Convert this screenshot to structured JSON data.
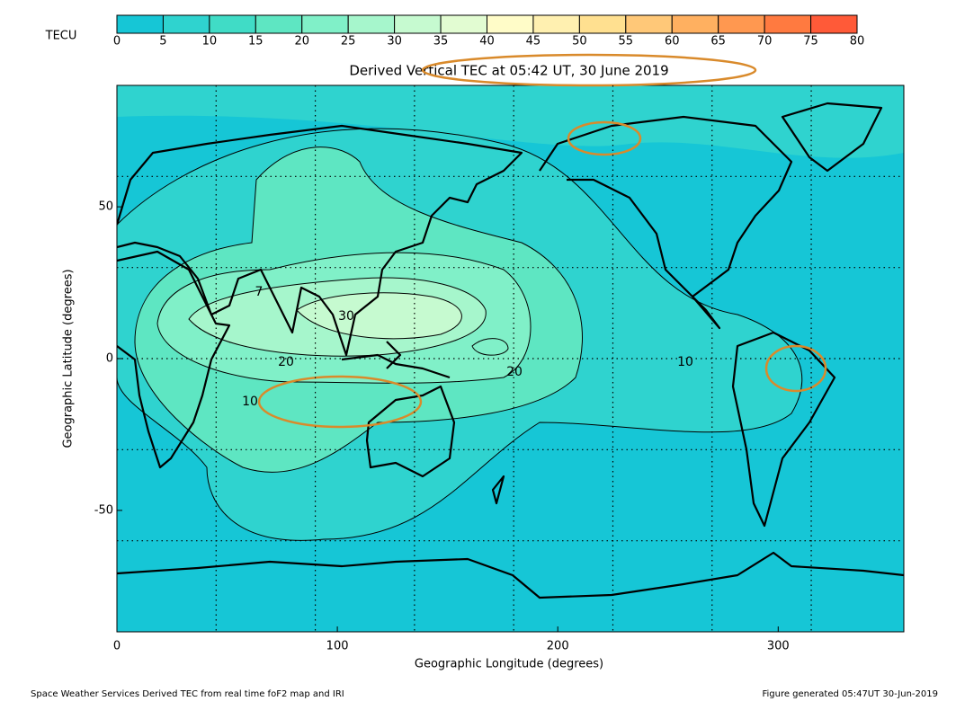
{
  "chart_data": {
    "type": "map",
    "title": "Derived Vertical TEC at 05:42 UT, 30 June 2019",
    "colorbar": {
      "label": "TECU",
      "ticks": [
        0,
        5,
        10,
        15,
        20,
        25,
        30,
        35,
        40,
        45,
        50,
        55,
        60,
        65,
        70,
        75,
        80
      ],
      "colors": [
        "#16c6d6",
        "#2fd3cf",
        "#40dcc6",
        "#5ee6c2",
        "#80f0c8",
        "#a6f6cc",
        "#c6fad0",
        "#e2fcd2",
        "#fffcc8",
        "#fff0b0",
        "#ffe090",
        "#ffc878",
        "#ffb060",
        "#ff9850",
        "#ff7a40",
        "#ff5a38"
      ]
    },
    "xlim": [
      0,
      357
    ],
    "ylim": [
      -90,
      90
    ],
    "xticks": [
      0,
      100,
      200,
      300
    ],
    "yticks": [
      -50,
      0,
      50
    ],
    "xgrid": [
      45,
      90,
      135,
      180,
      225,
      270,
      315
    ],
    "ygrid": [
      -60,
      -30,
      0,
      30,
      60
    ],
    "x_label": "Geographic Longitude (degrees)",
    "y_label": "Geographic Latitude (degrees)",
    "contour_labels": [
      "7",
      "30",
      "20",
      "10",
      "20",
      "10"
    ]
  },
  "footer": {
    "left": "Space Weather Services Derived TEC from real time foF2 map and IRI",
    "right": "Figure generated 05:47UT 30-Jun-2019"
  }
}
